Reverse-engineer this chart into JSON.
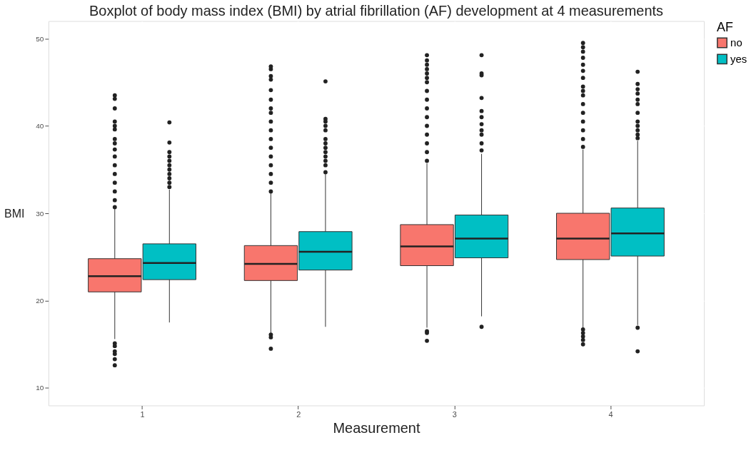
{
  "chart_data": {
    "type": "box",
    "title": "Boxplot of body mass index (BMI) by atrial fibrillation (AF) development at 4 measurements",
    "xlabel": "Measurement",
    "ylabel": "BMI",
    "legend_title": "AF",
    "categories": [
      "1",
      "2",
      "3",
      "4"
    ],
    "ylim": [
      8,
      52
    ],
    "yticks": [
      10,
      20,
      30,
      40,
      50
    ],
    "grid": true,
    "legend": "right",
    "series": [
      {
        "name": "no",
        "color": "#f8766d",
        "boxes": [
          {
            "low": 15.6,
            "q1": 21.0,
            "median": 22.8,
            "q3": 24.8,
            "high": 30.5,
            "outliers": [
              15.1,
              14.8,
              14.2,
              13.9,
              13.3,
              12.6,
              30.7,
              31.5,
              32.5,
              33.5,
              34.5,
              35.5,
              36.5,
              37.3,
              38.0,
              38.5,
              39.6,
              40.0,
              40.5,
              42.0,
              43.1,
              43.5
            ]
          },
          {
            "low": 16.3,
            "q1": 22.3,
            "median": 24.2,
            "q3": 26.3,
            "high": 32.3,
            "outliers": [
              16.1,
              15.8,
              14.5,
              32.5,
              33.5,
              34.5,
              35.5,
              36.5,
              37.5,
              38.5,
              39.5,
              40.5,
              41.5,
              42.0,
              43.0,
              44.1,
              45.3,
              45.7,
              46.5,
              46.8
            ]
          },
          {
            "low": 16.9,
            "q1": 24.0,
            "median": 26.2,
            "q3": 28.7,
            "high": 35.7,
            "outliers": [
              16.5,
              16.3,
              15.4,
              36.0,
              37.0,
              38.0,
              39.0,
              40.0,
              41.0,
              42.0,
              43.0,
              44.0,
              45.0,
              45.5,
              46.0,
              46.5,
              47.0,
              47.5,
              48.1
            ]
          },
          {
            "low": 16.8,
            "q1": 24.7,
            "median": 27.1,
            "q3": 30.0,
            "high": 37.3,
            "outliers": [
              16.7,
              16.3,
              15.9,
              15.5,
              15.0,
              37.6,
              38.5,
              39.5,
              40.5,
              41.5,
              42.5,
              43.5,
              44.0,
              44.5,
              45.5,
              46.3,
              47.0,
              47.8,
              48.5,
              49.0,
              49.5
            ]
          }
        ]
      },
      {
        "name": "yes",
        "color": "#00bfc4",
        "boxes": [
          {
            "low": 17.5,
            "q1": 22.4,
            "median": 24.3,
            "q3": 26.5,
            "high": 32.7,
            "outliers": [
              33.0,
              33.5,
              34.0,
              34.5,
              35.0,
              35.5,
              36.0,
              36.5,
              37.0,
              38.1,
              40.4
            ]
          },
          {
            "low": 17.0,
            "q1": 23.5,
            "median": 25.6,
            "q3": 27.9,
            "high": 34.5,
            "outliers": [
              34.7,
              35.5,
              36.0,
              36.5,
              37.0,
              37.5,
              38.0,
              38.5,
              39.5,
              40.0,
              40.5,
              40.8,
              45.1
            ]
          },
          {
            "low": 18.2,
            "q1": 24.9,
            "median": 27.1,
            "q3": 29.8,
            "high": 36.8,
            "outliers": [
              17.0,
              37.2,
              38.0,
              39.0,
              39.5,
              40.2,
              41.0,
              41.7,
              43.2,
              45.8,
              46.0,
              48.1
            ]
          },
          {
            "low": 17.2,
            "q1": 25.1,
            "median": 27.7,
            "q3": 30.6,
            "high": 38.3,
            "outliers": [
              16.9,
              14.2,
              38.6,
              39.0,
              39.5,
              40.0,
              40.5,
              41.5,
              42.5,
              43.0,
              43.7,
              44.2,
              44.8,
              46.2
            ]
          }
        ]
      }
    ]
  }
}
